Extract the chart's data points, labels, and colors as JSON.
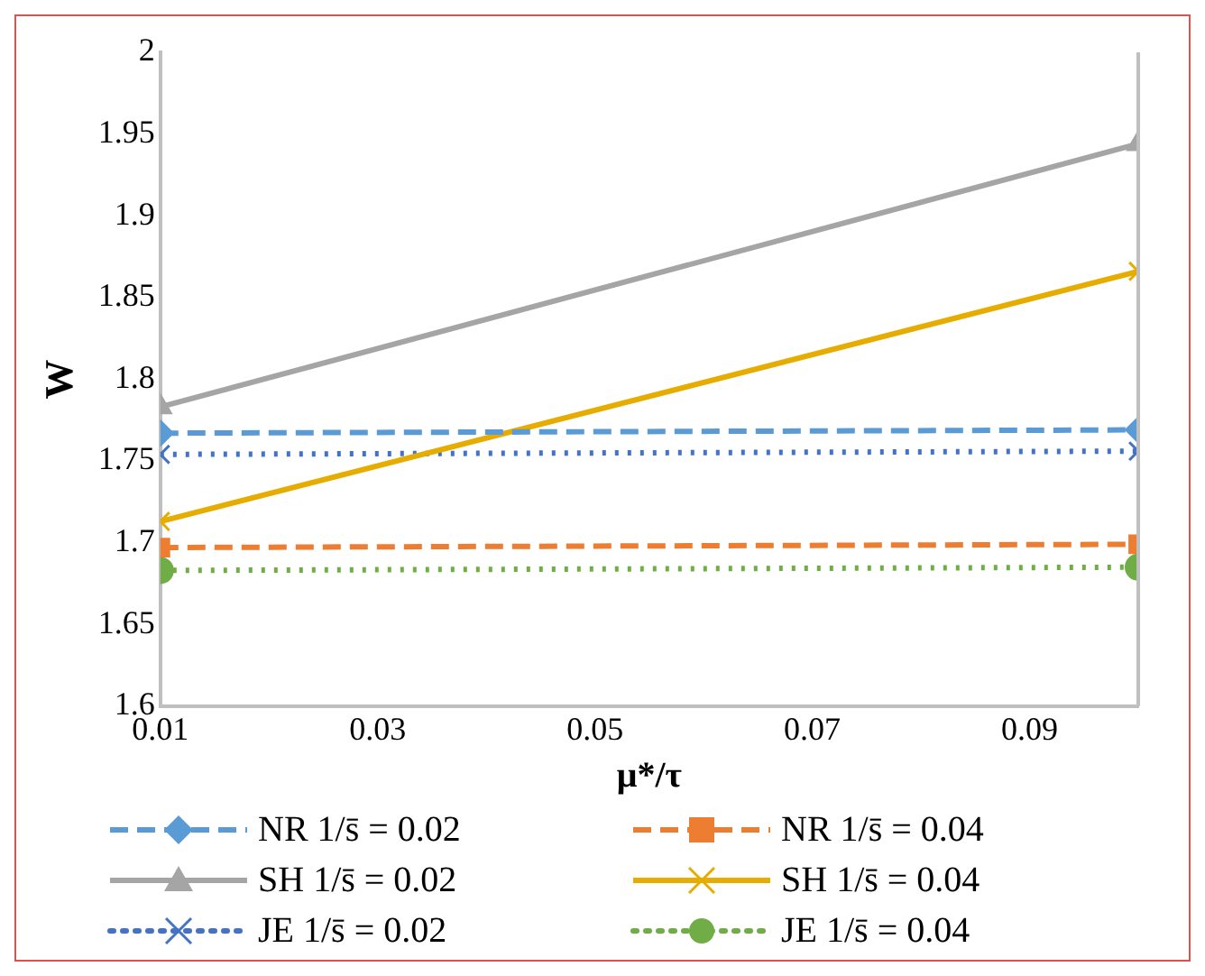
{
  "chart_data": {
    "type": "line",
    "xlabel": "μ*/τ",
    "ylabel": "W",
    "x": [
      0.01,
      0.1
    ],
    "xlim": [
      0.01,
      0.1
    ],
    "xticks": [
      0.01,
      0.03,
      0.05,
      0.07,
      0.09
    ],
    "ylim": [
      1.6,
      2
    ],
    "yticks": [
      1.6,
      1.65,
      1.7,
      1.75,
      1.8,
      1.85,
      1.9,
      1.95,
      2
    ],
    "grid": false,
    "legend": "bottom",
    "series": [
      {
        "name": "NR 1/s̄ = 0.02",
        "color": "#5b9bd5",
        "values": [
          1.767,
          1.769
        ],
        "marker": "diamond",
        "line_style": "dashed"
      },
      {
        "name": "NR 1/s̄ = 0.04",
        "color": "#ed7d31",
        "values": [
          1.697,
          1.699
        ],
        "marker": "square",
        "line_style": "dashed"
      },
      {
        "name": "SH 1/s̄ = 0.02",
        "color": "#a5a5a5",
        "values": [
          1.783,
          1.944
        ],
        "marker": "triangle",
        "line_style": "solid"
      },
      {
        "name": "SH 1/s̄ = 0.04",
        "color": "#e6ac00",
        "values": [
          1.713,
          1.866
        ],
        "marker": "cross",
        "line_style": "solid"
      },
      {
        "name": "JE 1/s̄ = 0.02",
        "color": "#4472c4",
        "values": [
          1.754,
          1.756
        ],
        "marker": "cross",
        "line_style": "dotted"
      },
      {
        "name": "JE 1/s̄ = 0.04",
        "color": "#70ad47",
        "values": [
          1.683,
          1.685
        ],
        "marker": "circle",
        "line_style": "dotted"
      }
    ]
  }
}
